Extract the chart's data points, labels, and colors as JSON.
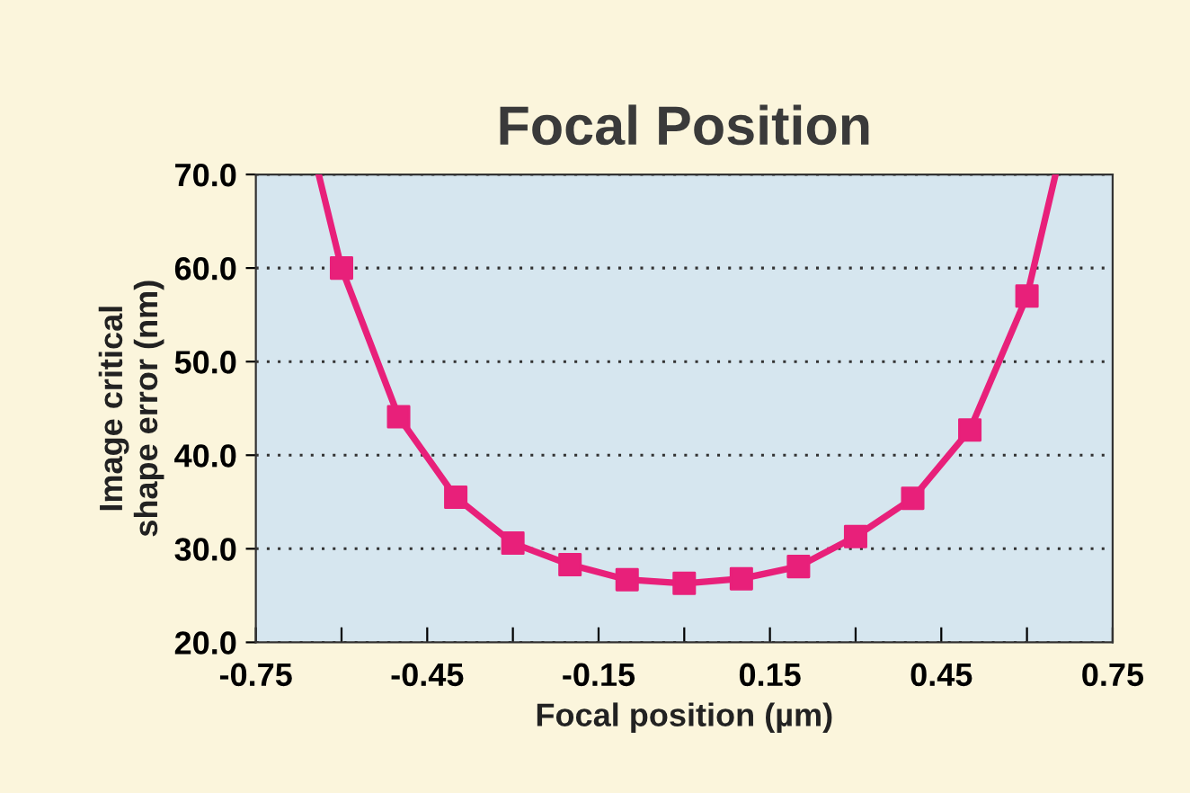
{
  "chart_data": {
    "type": "line",
    "title": "Focal Position",
    "xlabel": "Focal position (µm)",
    "ylabel": "Image critical\nshape error (nm)",
    "xlim": [
      -0.75,
      0.75
    ],
    "xticks": [
      -0.75,
      {
        "value": -0.6,
        "label": null
      },
      -0.45,
      {
        "value": -0.3,
        "label": null
      },
      -0.15,
      {
        "value": 0,
        "label": null
      },
      0.15,
      {
        "value": 0.3,
        "label": null
      },
      0.45,
      {
        "value": 0.6,
        "label": null
      },
      0.75
    ],
    "ylim": [
      20,
      70
    ],
    "yticks": [
      {
        "value": 20,
        "label": "20.0"
      },
      {
        "value": 30,
        "label": "30.0"
      },
      {
        "value": 40,
        "label": "40.0"
      },
      {
        "value": 50,
        "label": "50.0"
      },
      {
        "value": 60,
        "label": "60.0"
      },
      {
        "value": 70,
        "label": "70.0"
      }
    ],
    "grid": "y",
    "line_style": "solid",
    "series": [
      {
        "marker": "none",
        "color": "#e8207a",
        "x": [
          -0.64,
          -0.6,
          -0.5,
          -0.4,
          -0.3,
          -0.2,
          -0.1,
          0,
          0.1,
          0.2,
          0.3,
          0.4,
          0.5,
          0.6,
          0.65
        ],
        "values": [
          70,
          60,
          44.1,
          35.5,
          30.6,
          28.3,
          26.7,
          26.3,
          26.8,
          28.1,
          31.3,
          35.4,
          42.7,
          57.0,
          70
        ]
      },
      {
        "type": "scatter",
        "marker": "square",
        "color": "#e8207a",
        "x": [
          -0.6,
          -0.5,
          -0.4,
          -0.3,
          -0.2,
          -0.1,
          0,
          0.1,
          0.2,
          0.3,
          0.4,
          0.5,
          0.6
        ],
        "values": [
          60,
          44.1,
          35.5,
          30.6,
          28.3,
          26.7,
          26.3,
          26.8,
          28.1,
          31.3,
          35.4,
          42.7,
          57.0
        ]
      }
    ]
  }
}
